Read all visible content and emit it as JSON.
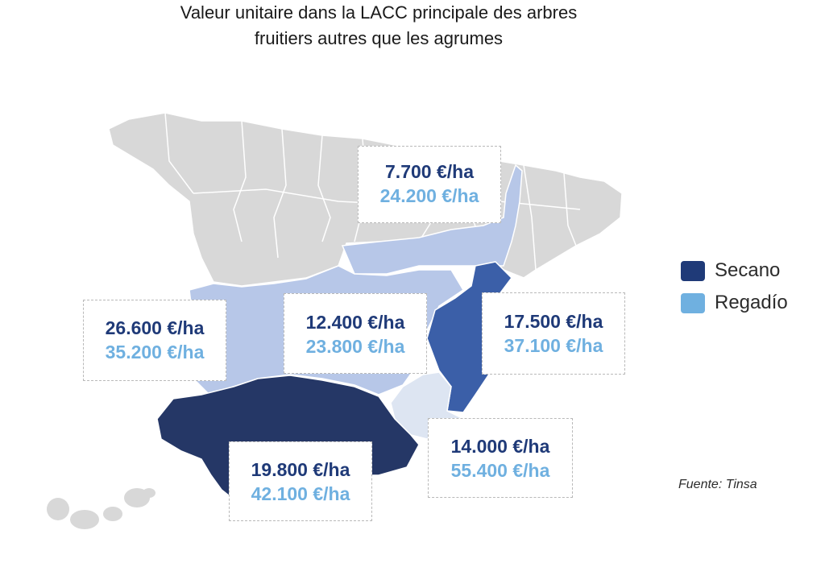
{
  "title": {
    "line1": "Valeur unitaire dans la LACC principale des arbres",
    "line2": "fruitiers autres que les agrumes"
  },
  "colors": {
    "secano": "#1f3a78",
    "regadio": "#6fb0e0",
    "others": "#d8d8d8",
    "ebro": "#b7c7e8",
    "centro": "#b7c7e8",
    "levante": "#3b5fa8",
    "andalucia": "#253766",
    "murcia": "#dde5f2"
  },
  "regions": [
    {
      "id": "ebro",
      "secano": "7.700 €/ha",
      "regadio": "24.200 €/ha"
    },
    {
      "id": "oeste",
      "secano": "26.600 €/ha",
      "regadio": "35.200 €/ha"
    },
    {
      "id": "centro",
      "secano": "12.400 €/ha",
      "regadio": "23.800 €/ha"
    },
    {
      "id": "levante",
      "secano": "17.500 €/ha",
      "regadio": "37.100 €/ha"
    },
    {
      "id": "andalucia",
      "secano": "19.800 €/ha",
      "regadio": "42.100 €/ha"
    },
    {
      "id": "murcia",
      "secano": "14.000 €/ha",
      "regadio": "55.400 €/ha"
    }
  ],
  "legend": {
    "secano": "Secano",
    "regadio": "Regadío"
  },
  "source": "Fuente: Tinsa"
}
